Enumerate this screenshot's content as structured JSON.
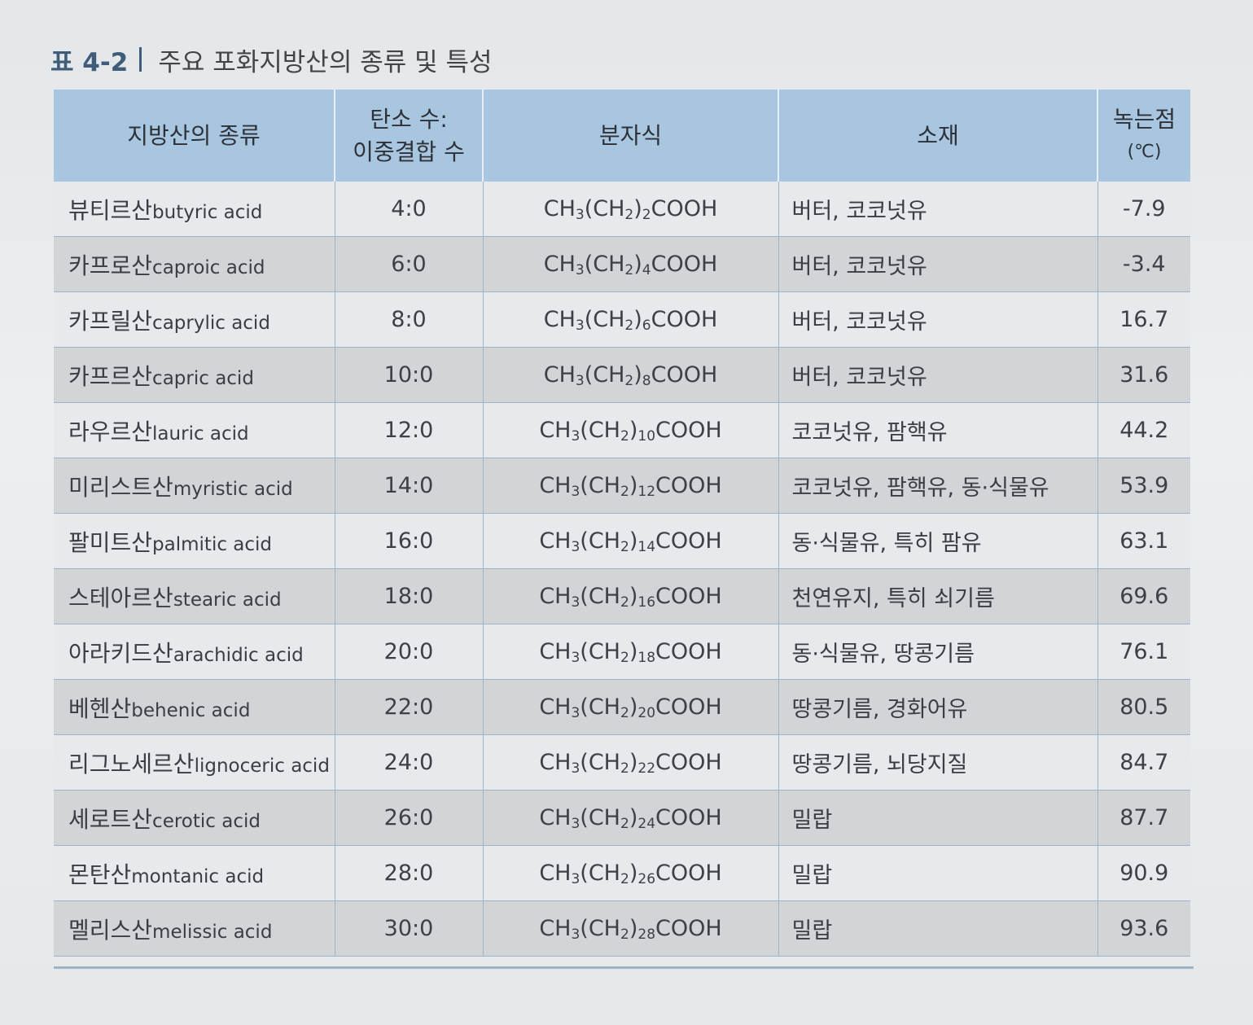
{
  "caption": {
    "number": "표 4-2",
    "title": "주요 포화지방산의 종류 및 특성"
  },
  "table": {
    "headers": {
      "name": "지방산의 종류",
      "carbon_line1": "탄소 수:",
      "carbon_line2": "이중결합 수",
      "formula": "분자식",
      "source": "소재",
      "mp_line1": "녹는점",
      "mp_line2": "(℃)"
    },
    "rows": [
      {
        "ko": "뷰티르산",
        "en": "butyric acid",
        "carbon": "4:0",
        "sub_n": "2",
        "source": "버터, 코코넛유",
        "mp": "-7.9"
      },
      {
        "ko": "카프로산",
        "en": "caproic acid",
        "carbon": "6:0",
        "sub_n": "4",
        "source": "버터, 코코넛유",
        "mp": "-3.4"
      },
      {
        "ko": "카프릴산",
        "en": "caprylic acid",
        "carbon": "8:0",
        "sub_n": "6",
        "source": "버터, 코코넛유",
        "mp": "16.7"
      },
      {
        "ko": "카프르산",
        "en": "capric acid",
        "carbon": "10:0",
        "sub_n": "8",
        "source": "버터, 코코넛유",
        "mp": "31.6"
      },
      {
        "ko": "라우르산",
        "en": "lauric acid",
        "carbon": "12:0",
        "sub_n": "10",
        "source": "코코넛유, 팜핵유",
        "mp": "44.2"
      },
      {
        "ko": "미리스트산",
        "en": "myristic acid",
        "carbon": "14:0",
        "sub_n": "12",
        "source": "코코넛유, 팜핵유, 동·식물유",
        "mp": "53.9"
      },
      {
        "ko": "팔미트산",
        "en": "palmitic acid",
        "carbon": "16:0",
        "sub_n": "14",
        "source": "동·식물유, 특히 팜유",
        "mp": "63.1"
      },
      {
        "ko": "스테아르산",
        "en": "stearic acid",
        "carbon": "18:0",
        "sub_n": "16",
        "source": "천연유지, 특히 쇠기름",
        "mp": "69.6"
      },
      {
        "ko": "아라키드산",
        "en": "arachidic acid",
        "carbon": "20:0",
        "sub_n": "18",
        "source": "동·식물유, 땅콩기름",
        "mp": "76.1"
      },
      {
        "ko": "베헨산",
        "en": "behenic acid",
        "carbon": "22:0",
        "sub_n": "20",
        "source": "땅콩기름, 경화어유",
        "mp": "80.5"
      },
      {
        "ko": "리그노세르산",
        "en": "lignoceric acid",
        "carbon": "24:0",
        "sub_n": "22",
        "source": "땅콩기름, 뇌당지질",
        "mp": "84.7"
      },
      {
        "ko": "세로트산",
        "en": "cerotic acid",
        "carbon": "26:0",
        "sub_n": "24",
        "source": "밀랍",
        "mp": "87.7"
      },
      {
        "ko": "몬탄산",
        "en": "montanic acid",
        "carbon": "28:0",
        "sub_n": "26",
        "source": "밀랍",
        "mp": "90.9"
      },
      {
        "ko": "멜리스산",
        "en": "melissic acid",
        "carbon": "30:0",
        "sub_n": "28",
        "source": "밀랍",
        "mp": "93.6"
      }
    ]
  }
}
